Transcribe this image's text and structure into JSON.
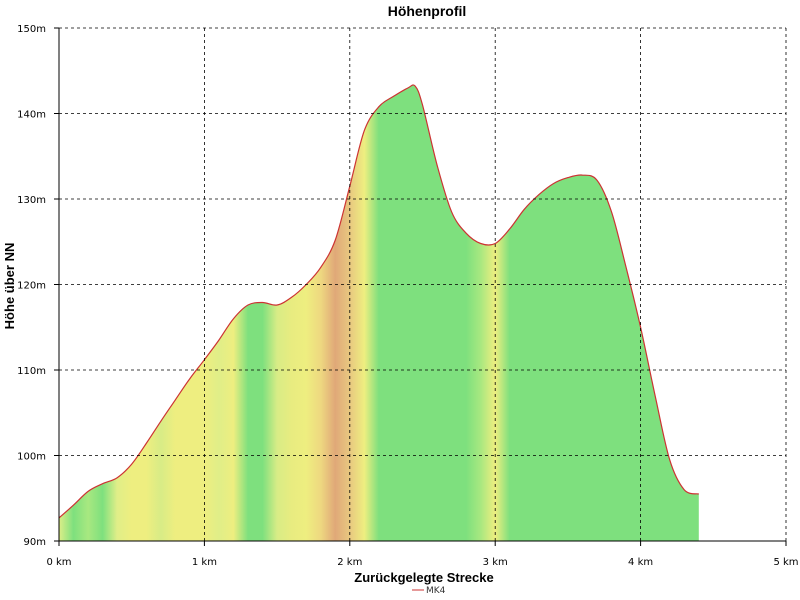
{
  "chart_data": {
    "type": "area",
    "title": "Höhenprofil",
    "xlabel": "Zurückgelegte Strecke",
    "ylabel": "Höhe über NN",
    "xlim": [
      0,
      5
    ],
    "ylim": [
      90,
      150
    ],
    "x_ticks": [
      0,
      1,
      2,
      3,
      4,
      5
    ],
    "x_tick_labels": [
      "0 km",
      "1 km",
      "2 km",
      "3 km",
      "4 km",
      "5 km"
    ],
    "y_ticks": [
      90,
      100,
      110,
      120,
      130,
      140,
      150
    ],
    "y_tick_labels": [
      "90m",
      "100m",
      "110m",
      "120m",
      "130m",
      "140m",
      "150m"
    ],
    "grid": true,
    "legend_position": "bottom-center",
    "colors": {
      "line": "#cc3333",
      "fill_green": "#7ee07e",
      "fill_yellow": "#eeee80",
      "fill_orange": "#e0b070",
      "grid": "#000000"
    },
    "series": [
      {
        "name": "MK4",
        "x": [
          0,
          0.1,
          0.2,
          0.3,
          0.4,
          0.5,
          0.6,
          0.7,
          0.8,
          0.9,
          1.0,
          1.1,
          1.2,
          1.3,
          1.4,
          1.5,
          1.6,
          1.7,
          1.8,
          1.9,
          2.0,
          2.1,
          2.2,
          2.3,
          2.4,
          2.45,
          2.5,
          2.6,
          2.7,
          2.8,
          2.9,
          3.0,
          3.1,
          3.2,
          3.3,
          3.4,
          3.5,
          3.6,
          3.7,
          3.8,
          3.9,
          4.0,
          4.1,
          4.2,
          4.3,
          4.4
        ],
        "values": [
          92.7,
          94.2,
          95.8,
          96.7,
          97.4,
          99.0,
          101.4,
          104.0,
          106.5,
          109.0,
          111.2,
          113.5,
          116.0,
          117.6,
          117.9,
          117.6,
          118.5,
          120.0,
          122.0,
          125.2,
          131.5,
          138.0,
          140.8,
          142.0,
          143.0,
          143.2,
          141.0,
          134.0,
          128.5,
          126.0,
          124.8,
          124.8,
          126.5,
          128.8,
          130.5,
          131.8,
          132.5,
          132.8,
          132.2,
          128.5,
          122.0,
          115.0,
          107.0,
          99.5,
          96.0,
          95.5
        ],
        "slope_colors": [
          "#ddee88",
          "#7ee07e",
          "#a8e880",
          "#7ee07e",
          "#e0ee88",
          "#eeee80",
          "#eeee80",
          "#d8ec86",
          "#eeee80",
          "#eeee80",
          "#eeee80",
          "#e0ee88",
          "#eeee80",
          "#7ee07e",
          "#7ee07e",
          "#d8ec86",
          "#e8ec80",
          "#eeee80",
          "#eed880",
          "#e0a878",
          "#e8c880",
          "#eeee80",
          "#7ee07e",
          "#7ee07e",
          "#7ee07e",
          "#7ee07e",
          "#7ee07e",
          "#7ee07e",
          "#7ee07e",
          "#7ee07e",
          "#a8e880",
          "#eeee80",
          "#7ee07e",
          "#7ee07e",
          "#7ee07e",
          "#7ee07e",
          "#7ee07e",
          "#7ee07e",
          "#7ee07e",
          "#7ee07e",
          "#7ee07e",
          "#7ee07e",
          "#7ee07e",
          "#7ee07e",
          "#7ee07e",
          "#7ee07e"
        ]
      }
    ]
  }
}
